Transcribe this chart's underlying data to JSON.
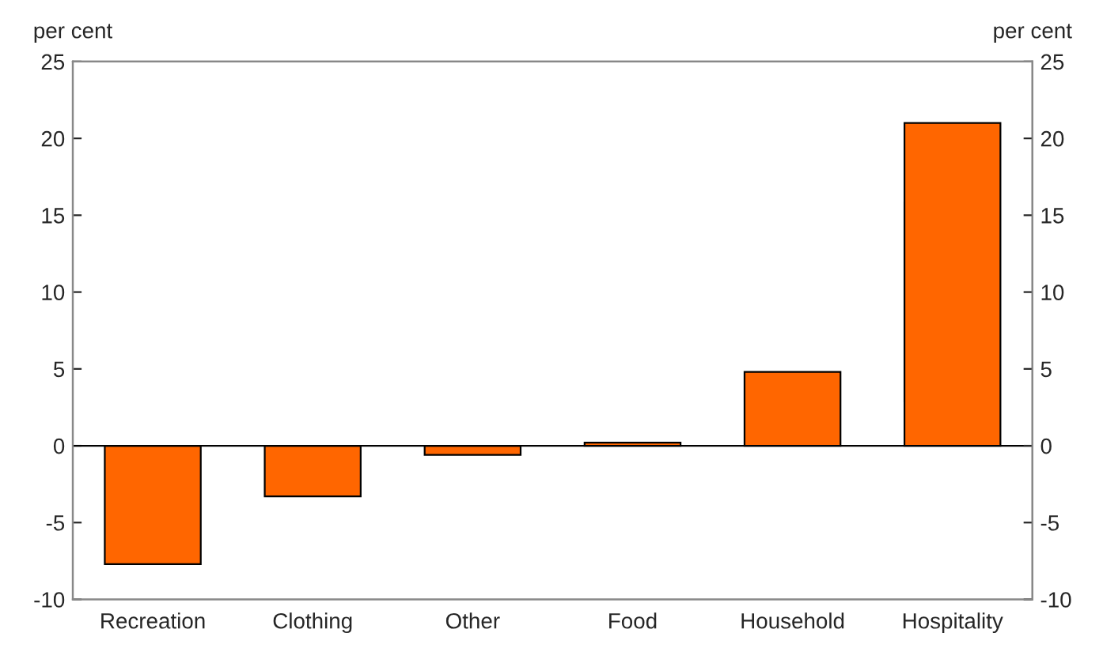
{
  "chart_data": {
    "type": "bar",
    "ylabel": "per cent",
    "y2label": "per cent",
    "categories": [
      "Recreation",
      "Clothing",
      "Other",
      "Food",
      "Household",
      "Hospitality"
    ],
    "values": [
      -7.7,
      -3.3,
      -0.6,
      0.2,
      4.8,
      21.0
    ],
    "color": "#ff6600",
    "ylim": [
      -10,
      25
    ],
    "yticks": [
      -10,
      -5,
      0,
      5,
      10,
      15,
      20,
      25
    ],
    "y2lim": [
      -10,
      25
    ],
    "y2ticks": [
      -10,
      -5,
      0,
      5,
      10,
      15,
      20,
      25
    ],
    "legend": false
  }
}
